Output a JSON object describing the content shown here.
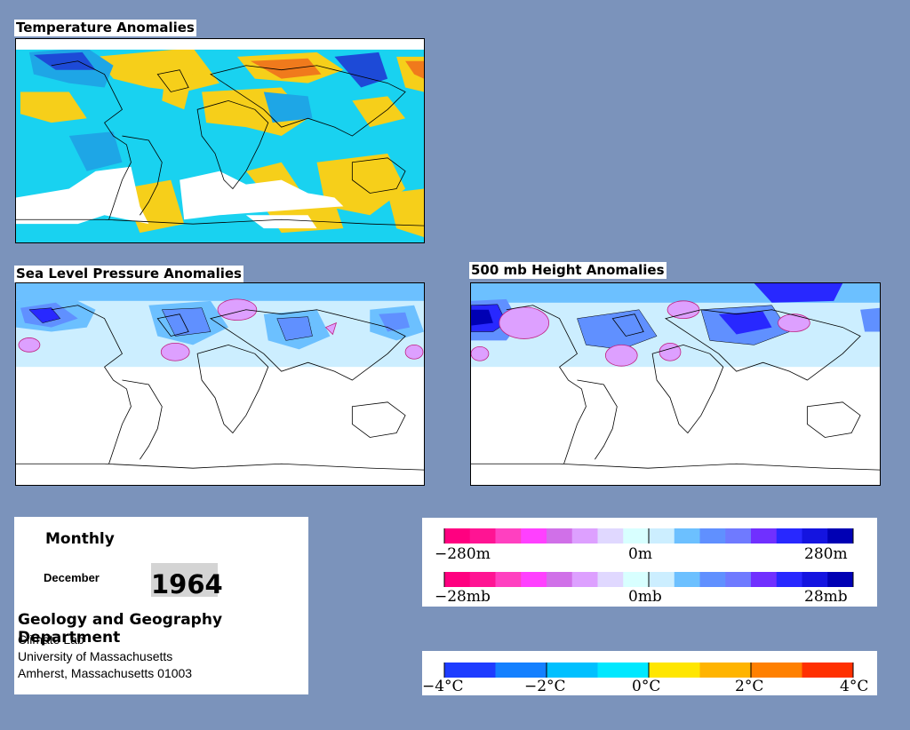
{
  "temperature": {
    "title": "Temperature Anomalies",
    "colors": {
      "cold": "#1ea6e6",
      "cool": "#19d2f0",
      "warm": "#f6cf1a",
      "hot": "#f07a1c",
      "deep_cold": "#1d4ad7",
      "no_data": "#ffffff"
    }
  },
  "slp": {
    "title": "Sea Level Pressure Anomalies"
  },
  "height500": {
    "title": "500 mb Height Anomalies"
  },
  "info": {
    "mode": "Monthly",
    "month": "December",
    "year": "1964",
    "department": "Geology and Geography Department",
    "lab": "Climate Lab",
    "university": "University of Massachusetts",
    "address": "Amherst, Massachusetts 01003"
  },
  "legend_height": {
    "min_label": "−280m",
    "mid_label": "0m",
    "max_label": "280m",
    "colors": [
      "#ff0080",
      "#ff1493",
      "#ff40c0",
      "#ff40ff",
      "#d070e8",
      "#dda0ff",
      "#e0d8ff",
      "#d8ffff",
      "#cceeff",
      "#6cc0ff",
      "#6090ff",
      "#6f7aff",
      "#7030ff",
      "#2828ff",
      "#1414e0",
      "#0000b4"
    ]
  },
  "legend_pressure": {
    "min_label": "−28mb",
    "mid_label": "0mb",
    "max_label": "28mb"
  },
  "legend_temperature": {
    "labels": [
      "−4°C",
      "−2°C",
      "0°C",
      "2°C",
      "4°C"
    ],
    "colors": [
      "#1e3cff",
      "#1480ff",
      "#00c0ff",
      "#00e8ff",
      "#ffe600",
      "#ffb400",
      "#ff8000",
      "#ff3000"
    ]
  }
}
